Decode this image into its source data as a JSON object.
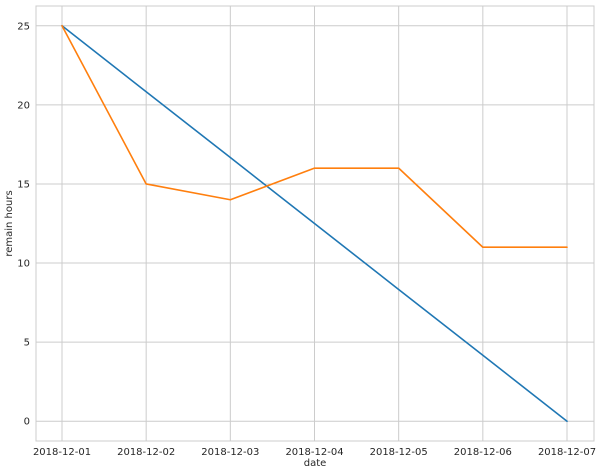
{
  "chart_data": {
    "type": "line",
    "xlabel": "date",
    "ylabel": "remain hours",
    "x": [
      "2018-12-01",
      "2018-12-02",
      "2018-12-03",
      "2018-12-04",
      "2018-12-05",
      "2018-12-06",
      "2018-12-07"
    ],
    "xlim": [
      "2018-12-01",
      "2018-12-07"
    ],
    "ylim": [
      -1.25,
      26.25
    ],
    "yticks": [
      0,
      5,
      10,
      15,
      20,
      25
    ],
    "grid": true,
    "series": [
      {
        "color": "#1f77b4",
        "values": [
          25,
          20.83,
          16.67,
          12.5,
          8.33,
          4.17,
          0
        ]
      },
      {
        "color": "#ff7f0e",
        "values": [
          25,
          15,
          14,
          16,
          16,
          11,
          11
        ]
      }
    ]
  }
}
